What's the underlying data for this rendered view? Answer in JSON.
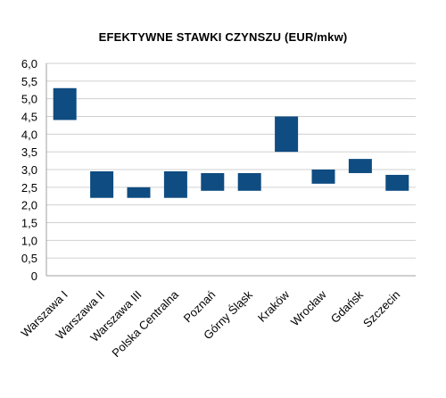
{
  "chart_data": {
    "type": "bar",
    "subtype": "floating-range",
    "title": "EFEKTYWNE STAWKI CZYNSZU (EUR/mkw)",
    "xlabel": "",
    "ylabel": "",
    "ylim": [
      0,
      6
    ],
    "ytick_step": 0.5,
    "ytick_labels": [
      "0",
      "0,5",
      "1,0",
      "1,5",
      "2,0",
      "2,5",
      "3,0",
      "3,5",
      "4,0",
      "4,5",
      "5,0",
      "5,5",
      "6,0"
    ],
    "grid": true,
    "legend": "none",
    "bar_color": "#0f4c81",
    "categories": [
      "Warszawa I",
      "Warszawa II",
      "Warszawa III",
      "Polska Centralna",
      "Poznań",
      "Górny Śląsk",
      "Kraków",
      "Wrocław",
      "Gdańsk",
      "Szczecin"
    ],
    "series": [
      {
        "low": [
          4.4,
          2.2,
          2.2,
          2.2,
          2.4,
          2.4,
          3.5,
          2.6,
          2.9,
          2.4
        ],
        "high": [
          5.3,
          2.95,
          2.5,
          2.95,
          2.9,
          2.9,
          4.5,
          3.0,
          3.3,
          2.85
        ]
      }
    ]
  }
}
